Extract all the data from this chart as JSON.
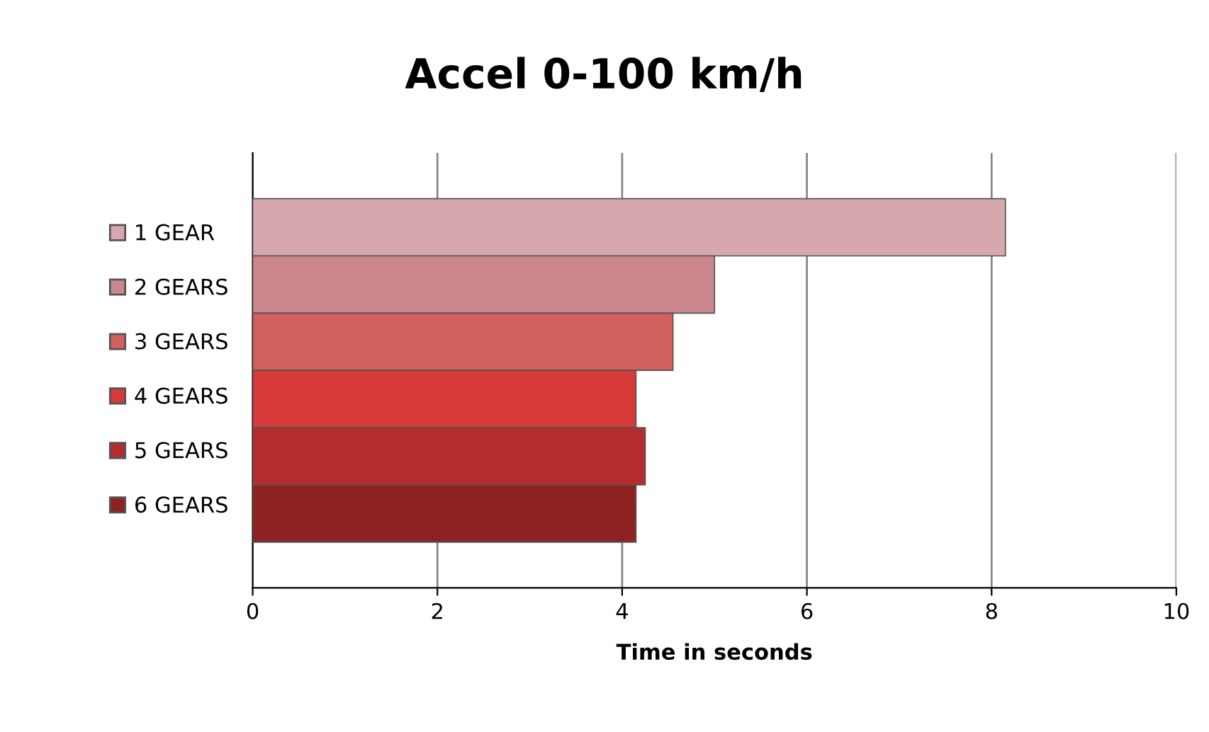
{
  "chart_data": {
    "type": "bar",
    "orientation": "horizontal",
    "title": "Accel 0-100 km/h",
    "xlabel": "Time in seconds",
    "categories": [
      null
    ],
    "series": [
      {
        "name": "1 GEAR",
        "color": "#d7a7ae",
        "values": [
          8.15
        ]
      },
      {
        "name": "2 GEARS",
        "color": "#cc868d",
        "values": [
          5.0
        ]
      },
      {
        "name": "3 GEARS",
        "color": "#d2605f",
        "values": [
          4.55
        ]
      },
      {
        "name": "4 GEARS",
        "color": "#d73a38",
        "values": [
          4.15
        ]
      },
      {
        "name": "5 GEARS",
        "color": "#b52c2c",
        "values": [
          4.25
        ]
      },
      {
        "name": "6 GEARS",
        "color": "#8e2222",
        "values": [
          4.15
        ]
      }
    ],
    "xlim": [
      0,
      10
    ],
    "xticks": [
      0,
      2,
      4,
      6,
      8,
      10
    ],
    "grid": "x",
    "legend": "left"
  }
}
